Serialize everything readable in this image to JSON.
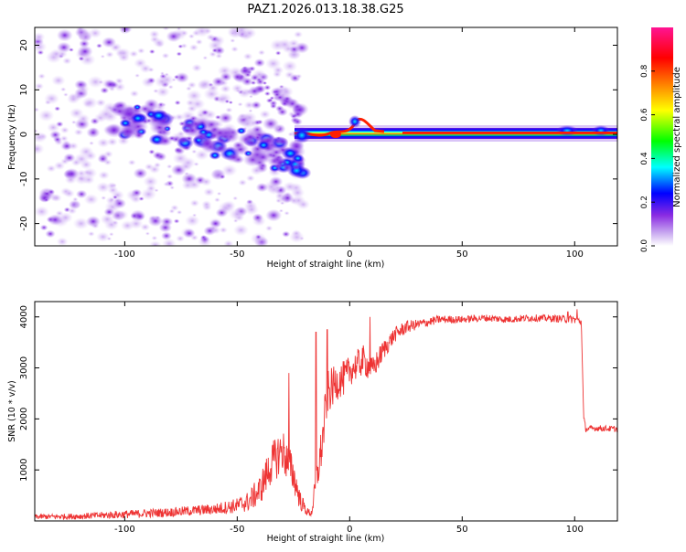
{
  "title": "PAZ1.2026.013.18.38.G25",
  "chart_data": [
    {
      "type": "heatmap",
      "name": "spectrogram",
      "xlabel": "Height of straight line (km)",
      "ylabel": "Frequency (Hz)",
      "xlim": [
        -140,
        119
      ],
      "ylim": [
        -25,
        24
      ],
      "xticks": [
        -100,
        -50,
        0,
        50,
        100
      ],
      "yticks": [
        -20,
        -10,
        0,
        10,
        20
      ],
      "colorbar": {
        "label": "Normalized spectral amplitude",
        "range": [
          0.0,
          1.0
        ],
        "ticks": [
          "0.0",
          "0.2",
          "0.4",
          "0.6",
          "0.8"
        ],
        "colors": [
          "#ffffff",
          "#8a2be2",
          "#0000ff",
          "#00ffff",
          "#00ff00",
          "#ffff00",
          "#ff8000",
          "#ff0000",
          "#ff1493"
        ]
      },
      "features": [
        {
          "label": "noise cloud",
          "x": [
            -140,
            -20
          ],
          "y": [
            -25,
            24
          ],
          "amplitude": 0.1
        },
        {
          "label": "main tone",
          "x": [
            -20,
            119
          ],
          "y": [
            0.8,
            1.2
          ],
          "amplitude": 0.9
        }
      ]
    },
    {
      "type": "line",
      "name": "snr",
      "xlabel": "Height of straight line (km)",
      "ylabel": "SNR (10 * v/v)",
      "xlim": [
        -140,
        119
      ],
      "ylim": [
        0,
        4300
      ],
      "xticks": [
        -100,
        -50,
        0,
        50,
        100
      ],
      "yticks": [
        1000,
        2000,
        3000,
        4000
      ],
      "color": "#ee3333",
      "series": {
        "x": [
          -140,
          -120,
          -100,
          -80,
          -60,
          -50,
          -45,
          -40,
          -35,
          -30,
          -25,
          -22,
          -19,
          -17,
          -15,
          -12,
          -10,
          -8,
          -5,
          -2,
          0,
          3,
          6,
          10,
          15,
          20,
          25,
          30,
          35,
          40,
          50,
          60,
          70,
          80,
          90,
          100,
          103,
          104,
          105,
          110,
          119
        ],
        "y": [
          80,
          90,
          130,
          170,
          230,
          300,
          380,
          600,
          1100,
          1400,
          900,
          400,
          180,
          150,
          700,
          1600,
          2500,
          2600,
          2750,
          2800,
          2950,
          3050,
          3150,
          2950,
          3350,
          3650,
          3800,
          3850,
          3900,
          3950,
          3950,
          3980,
          3950,
          3980,
          3970,
          3950,
          3900,
          2000,
          1800,
          1820,
          1800
        ],
        "noise": [
          50,
          60,
          80,
          90,
          110,
          150,
          200,
          300,
          400,
          450,
          350,
          200,
          80,
          80,
          300,
          450,
          450,
          400,
          350,
          350,
          300,
          300,
          300,
          250,
          200,
          150,
          130,
          100,
          90,
          80,
          70,
          70,
          70,
          70,
          70,
          80,
          80,
          80,
          60,
          60,
          60
        ],
        "spikes": [
          {
            "x": -27,
            "y": 2900
          },
          {
            "x": -15,
            "y": 3700
          },
          {
            "x": -10,
            "y": 3750
          },
          {
            "x": 9,
            "y": 4000
          },
          {
            "x": 97,
            "y": 4100
          },
          {
            "x": 101,
            "y": 4150
          }
        ]
      }
    }
  ]
}
